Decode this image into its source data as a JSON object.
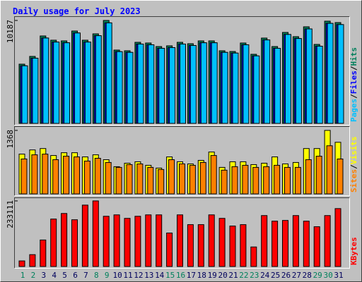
{
  "legend_separator": "/",
  "chart_data": [
    {
      "type": "bar",
      "title": "Daily usage for July 2023",
      "ylim": [
        0,
        10466
      ],
      "yticks": [
        10187
      ],
      "series": [
        {
          "name": "Hits",
          "color": "#00805c",
          "values": [
            5861,
            6629,
            8652,
            8233,
            8164,
            9140,
            8233,
            8861,
            10187,
            7257,
            7187,
            8024,
            7954,
            7605,
            7675,
            8024,
            7885,
            8164,
            8164,
            7187,
            7117,
            7954,
            6838,
            8443,
            7605,
            9001,
            8582,
            9559,
            7815,
            10117,
            9978
          ]
        },
        {
          "name": "Files",
          "color": "#0000ff",
          "values": [
            5700,
            6450,
            8450,
            8050,
            7980,
            8950,
            8050,
            8680,
            9950,
            7100,
            7030,
            7850,
            7780,
            7430,
            7500,
            7850,
            7710,
            7980,
            7980,
            7030,
            6960,
            7780,
            6680,
            8260,
            7430,
            8800,
            8400,
            9350,
            7640,
            9900,
            9780
          ]
        },
        {
          "name": "Pages",
          "color": "#00c0ff",
          "values": [
            5700,
            6450,
            8450,
            8050,
            7980,
            8950,
            8050,
            8680,
            9950,
            7100,
            7030,
            7850,
            7780,
            7430,
            7500,
            7850,
            7710,
            7980,
            7980,
            7030,
            6960,
            7780,
            6680,
            8260,
            7430,
            8800,
            8400,
            9350,
            7640,
            9900,
            9780
          ]
        }
      ]
    },
    {
      "type": "bar",
      "ylim": [
        0,
        1428
      ],
      "yticks": [
        1368
      ],
      "series": [
        {
          "name": "Visits",
          "color": "#ffff00",
          "values": [
            857,
            947,
            977,
            827,
            887,
            887,
            797,
            842,
            737,
            586,
            661,
            692,
            616,
            556,
            797,
            692,
            646,
            722,
            902,
            571,
            692,
            692,
            631,
            661,
            797,
            646,
            677,
            977,
            977,
            1368,
            1112
          ]
        },
        {
          "name": "Sites",
          "color": "#ff8000",
          "values": [
            752,
            842,
            857,
            737,
            812,
            797,
            707,
            767,
            677,
            571,
            631,
            646,
            571,
            526,
            737,
            646,
            616,
            677,
            827,
            511,
            586,
            616,
            571,
            586,
            616,
            571,
            571,
            737,
            812,
            1037,
            752
          ]
        }
      ]
    },
    {
      "type": "bar",
      "ylim": [
        0,
        240551
      ],
      "yticks": [
        233111
      ],
      "categories": [
        "1",
        "2",
        "3",
        "4",
        "5",
        "6",
        "7",
        "8",
        "9",
        "10",
        "11",
        "12",
        "13",
        "14",
        "15",
        "16",
        "17",
        "18",
        "19",
        "20",
        "21",
        "22",
        "23",
        "24",
        "25",
        "26",
        "27",
        "28",
        "29",
        "30",
        "31"
      ],
      "category_colors": [
        "#00805c",
        "#00805c",
        "#00005c",
        "#00005c",
        "#00005c",
        "#00005c",
        "#00005c",
        "#00805c",
        "#00805c",
        "#00005c",
        "#00005c",
        "#00005c",
        "#00005c",
        "#00005c",
        "#00805c",
        "#00805c",
        "#00005c",
        "#00005c",
        "#00005c",
        "#00005c",
        "#00005c",
        "#00805c",
        "#00805c",
        "#00005c",
        "#00005c",
        "#00005c",
        "#00005c",
        "#00005c",
        "#00805c",
        "#00805c",
        "#00005c"
      ],
      "series": [
        {
          "name": "KBytes",
          "color": "#ff0000",
          "values": [
            19839,
            42159,
            94236,
            168633,
            188473,
            166154,
            218230,
            233111,
            178554,
            183514,
            171113,
            178554,
            183514,
            183514,
            119036,
            183514,
            148794,
            148794,
            183514,
            171113,
            143835,
            148794,
            69437,
            181034,
            161194,
            163674,
            181034,
            161194,
            141355,
            181034,
            205833
          ]
        }
      ]
    }
  ]
}
